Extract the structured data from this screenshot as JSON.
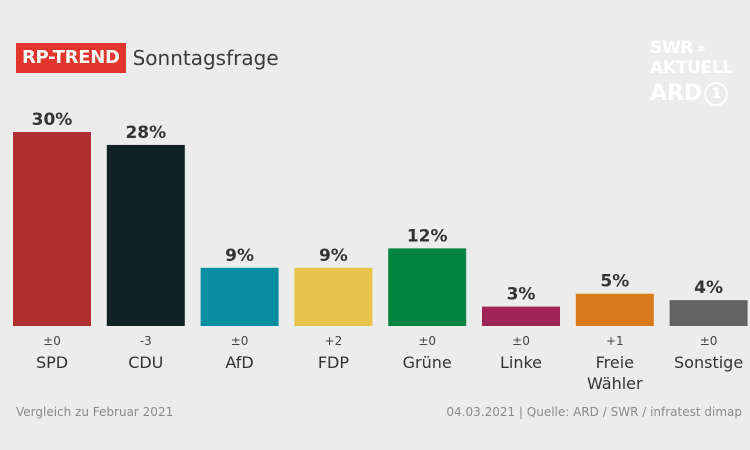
{
  "header": {
    "badge": "RP-TREND",
    "title": "Sonntagsfrage"
  },
  "logo": {
    "line1": "SWR",
    "arrows": "»",
    "line2": "AKTUELL",
    "line3": "ARD",
    "one": "1"
  },
  "footer": {
    "left": "Vergleich zu Februar 2021",
    "right": "04.03.2021 | Quelle: ARD / SWR / infratest dimap"
  },
  "chart_data": {
    "type": "bar",
    "title": "Sonntagsfrage",
    "categories": [
      "SPD",
      "CDU",
      "AfD",
      "FDP",
      "Grüne",
      "Linke",
      "Freie Wähler",
      "Sonstige"
    ],
    "category_lines": [
      [
        "SPD"
      ],
      [
        "CDU"
      ],
      [
        "AfD"
      ],
      [
        "FDP"
      ],
      [
        "Grüne"
      ],
      [
        "Linke"
      ],
      [
        "Freie",
        "Wähler"
      ],
      [
        "Sonstige"
      ]
    ],
    "values": [
      30,
      28,
      9,
      9,
      12,
      3,
      5,
      4
    ],
    "value_labels": [
      "30%",
      "28%",
      "9%",
      "9%",
      "12%",
      "3%",
      "5%",
      "4%"
    ],
    "changes": [
      "±0",
      "-3",
      "±0",
      "+2",
      "±0",
      "±0",
      "+1",
      "±0"
    ],
    "colors": [
      "#b0302f",
      "#112223",
      "#078fa1",
      "#e9c44c",
      "#00853f",
      "#9e2455",
      "#d97b1d",
      "#636363"
    ],
    "ylim": [
      0,
      30
    ],
    "grid": false
  }
}
